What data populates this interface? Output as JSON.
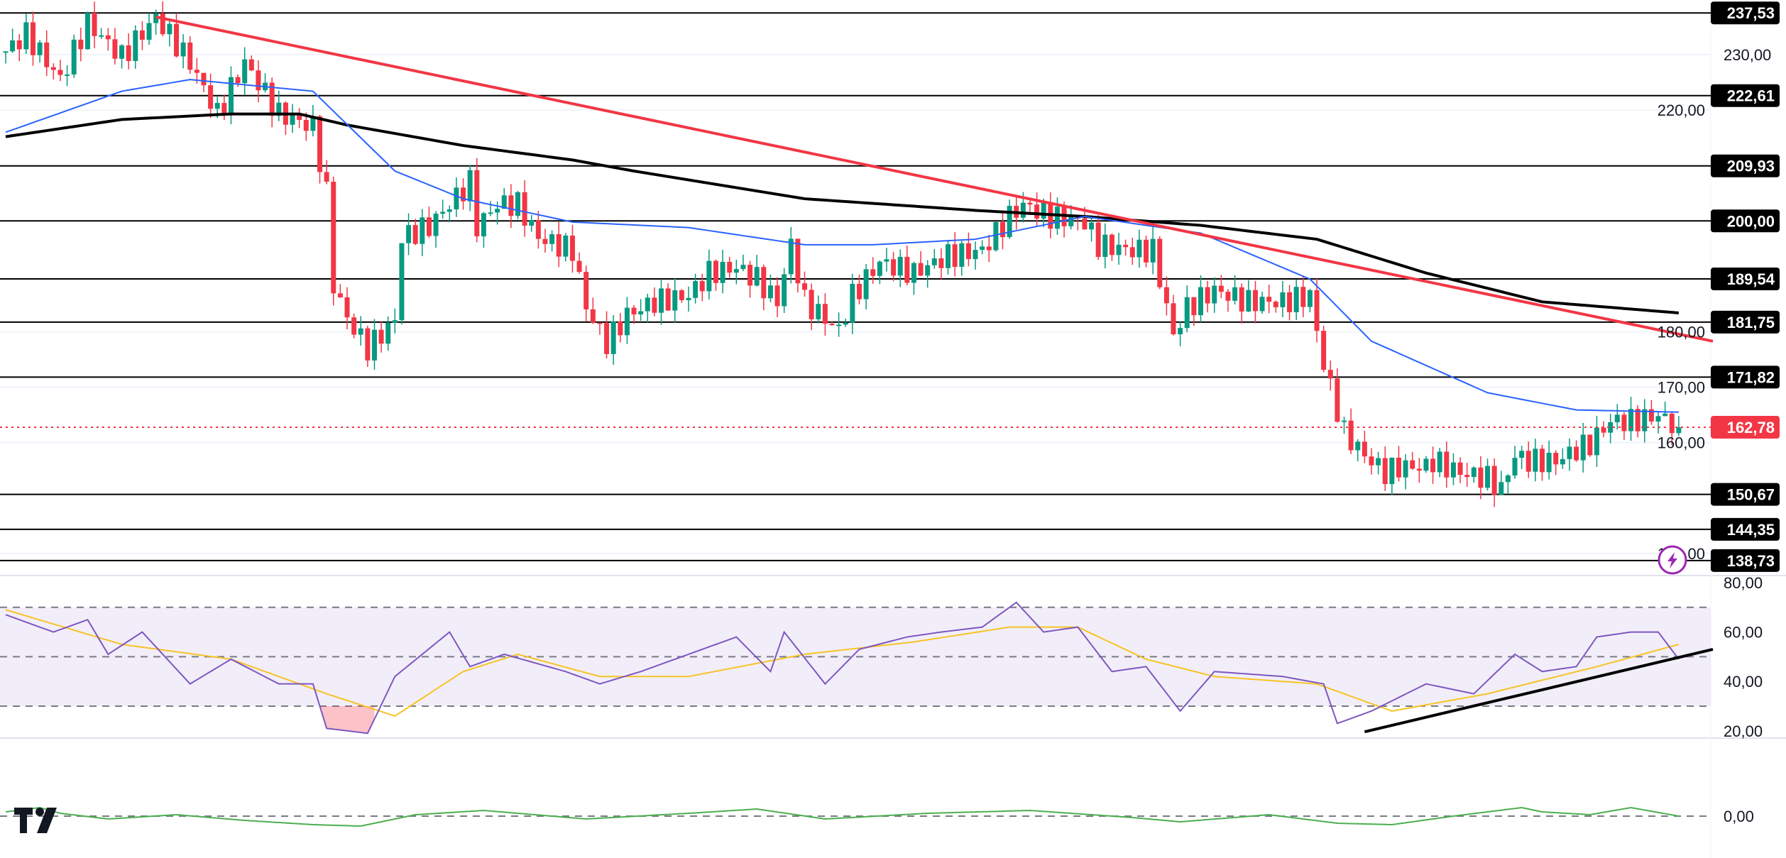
{
  "chart_data": [
    {
      "type": "candlestick",
      "panel": "price",
      "close_waypoints": [
        [
          0,
          230.6
        ],
        [
          3,
          233.7
        ],
        [
          8,
          225.5
        ],
        [
          12,
          235.7
        ],
        [
          17,
          229.6
        ],
        [
          22,
          236.8
        ],
        [
          27,
          228.6
        ],
        [
          31,
          219.3
        ],
        [
          35,
          228.6
        ],
        [
          40,
          219.3
        ],
        [
          45,
          217
        ],
        [
          47,
          205
        ],
        [
          48,
          188.5
        ],
        [
          50,
          182.4
        ],
        [
          53,
          177
        ],
        [
          57,
          182
        ],
        [
          58,
          197
        ],
        [
          62,
          199
        ],
        [
          65,
          203
        ],
        [
          68,
          207
        ],
        [
          69,
          199
        ],
        [
          72,
          203
        ],
        [
          75,
          203
        ],
        [
          78,
          197
        ],
        [
          83,
          194.7
        ],
        [
          85,
          184.4
        ],
        [
          88,
          178
        ],
        [
          91,
          183
        ],
        [
          95,
          185.4
        ],
        [
          100,
          186.5
        ],
        [
          103,
          190.6
        ],
        [
          107,
          191.6
        ],
        [
          110,
          189.5
        ],
        [
          113,
          185.4
        ],
        [
          115,
          195.7
        ],
        [
          117,
          185.4
        ],
        [
          122,
          180.3
        ],
        [
          124,
          186.5
        ],
        [
          128,
          192.6
        ],
        [
          133,
          190.6
        ],
        [
          138,
          193.7
        ],
        [
          143,
          194.7
        ],
        [
          147,
          200.8
        ],
        [
          149,
          202.9
        ],
        [
          153,
          200.8
        ],
        [
          158,
          199.8
        ],
        [
          160,
          195.7
        ],
        [
          165,
          194.7
        ],
        [
          168,
          194.7
        ],
        [
          171,
          179.3
        ],
        [
          173,
          184.4
        ],
        [
          177,
          187.5
        ],
        [
          182,
          185.4
        ],
        [
          187,
          185.4
        ],
        [
          191,
          186.5
        ],
        [
          193,
          174
        ],
        [
          196,
          161.8
        ],
        [
          199,
          157.7
        ],
        [
          202,
          154.6
        ],
        [
          204,
          155.6
        ],
        [
          208,
          155.6
        ],
        [
          209,
          156.7
        ],
        [
          213,
          154.6
        ],
        [
          217,
          153.6
        ],
        [
          219,
          151.5
        ],
        [
          221,
          157.7
        ],
        [
          223,
          156.7
        ],
        [
          227,
          156.7
        ],
        [
          230,
          158.7
        ],
        [
          232,
          159.8
        ],
        [
          235,
          163.9
        ],
        [
          238,
          163.9
        ],
        [
          242,
          164.9
        ],
        [
          245,
          162.78
        ]
      ],
      "ma_blue": [
        [
          0,
          216
        ],
        [
          17,
          223.4
        ],
        [
          27,
          225.5
        ],
        [
          45,
          223.4
        ],
        [
          57,
          209
        ],
        [
          67,
          204
        ],
        [
          83,
          199.8
        ],
        [
          100,
          198.8
        ],
        [
          117,
          195.7
        ],
        [
          127,
          195.7
        ],
        [
          142,
          196.7
        ],
        [
          158,
          200.8
        ],
        [
          175,
          197.8
        ],
        [
          191,
          189.5
        ],
        [
          200,
          178.3
        ],
        [
          217,
          169
        ],
        [
          230,
          165.9
        ],
        [
          245,
          165.5
        ]
      ],
      "ma_black": [
        [
          0,
          215.2
        ],
        [
          17,
          218.3
        ],
        [
          33,
          219.3
        ],
        [
          43,
          219.3
        ],
        [
          50,
          217.3
        ],
        [
          67,
          213.6
        ],
        [
          83,
          211
        ],
        [
          92,
          209
        ],
        [
          117,
          204
        ],
        [
          142,
          201.9
        ],
        [
          158,
          200.8
        ],
        [
          175,
          199.2
        ],
        [
          192,
          196.7
        ],
        [
          208,
          190.6
        ],
        [
          225,
          185.4
        ],
        [
          245,
          183.4
        ]
      ],
      "trendline": [
        [
          22,
          236.8
        ],
        [
          250,
          178.3
        ]
      ],
      "levels": [
        "237,53",
        "222,61",
        "209,93",
        "200,00",
        "189,54",
        "181,75",
        "171,82",
        "150,67",
        "144,35",
        "138,73"
      ],
      "level_values": [
        237.53,
        222.61,
        209.93,
        200.0,
        189.54,
        181.75,
        171.82,
        150.67,
        144.35,
        138.73
      ],
      "last_price": {
        "value": 162.78,
        "label": "162,78"
      },
      "y_ticks": [
        {
          "v": 230,
          "label": "230,00"
        },
        {
          "v": 220,
          "label": "220,00"
        },
        {
          "v": 180,
          "label": "180,00"
        },
        {
          "v": 170,
          "label": "170,00"
        },
        {
          "v": 160,
          "label": "160,00"
        },
        {
          "v": 140,
          "label": "140,00"
        }
      ],
      "ylim": [
        136,
        241
      ]
    },
    {
      "type": "line",
      "panel": "rsi",
      "rsi": [
        [
          0,
          67
        ],
        [
          7,
          60
        ],
        [
          12,
          65
        ],
        [
          15,
          51
        ],
        [
          20,
          60
        ],
        [
          27,
          39
        ],
        [
          33,
          49
        ],
        [
          40,
          39
        ],
        [
          45,
          39
        ],
        [
          47,
          21
        ],
        [
          53,
          19
        ],
        [
          57,
          42
        ],
        [
          65,
          60
        ],
        [
          68,
          46
        ],
        [
          73,
          51
        ],
        [
          82,
          44
        ],
        [
          87,
          39
        ],
        [
          93,
          44
        ],
        [
          100,
          51
        ],
        [
          107,
          58
        ],
        [
          112,
          44
        ],
        [
          114,
          60
        ],
        [
          120,
          39
        ],
        [
          125,
          53
        ],
        [
          132,
          58
        ],
        [
          137,
          60
        ],
        [
          143,
          62
        ],
        [
          148,
          72
        ],
        [
          152,
          60
        ],
        [
          157,
          62
        ],
        [
          162,
          44
        ],
        [
          167,
          46
        ],
        [
          172,
          28
        ],
        [
          177,
          44
        ],
        [
          187,
          42
        ],
        [
          193,
          39
        ],
        [
          195,
          23
        ],
        [
          200,
          28
        ],
        [
          208,
          39
        ],
        [
          215,
          35
        ],
        [
          221,
          51
        ],
        [
          225,
          44
        ],
        [
          230,
          46
        ],
        [
          233,
          58
        ],
        [
          238,
          60
        ],
        [
          242,
          60
        ],
        [
          245,
          49
        ]
      ],
      "rsi_ma": [
        [
          0,
          69
        ],
        [
          17,
          55
        ],
        [
          33,
          49
        ],
        [
          47,
          35
        ],
        [
          57,
          26
        ],
        [
          67,
          44
        ],
        [
          75,
          51
        ],
        [
          87,
          42
        ],
        [
          100,
          42
        ],
        [
          117,
          51
        ],
        [
          133,
          56
        ],
        [
          147,
          62
        ],
        [
          157,
          62
        ],
        [
          167,
          49
        ],
        [
          177,
          42
        ],
        [
          192,
          39
        ],
        [
          203,
          28
        ],
        [
          217,
          35
        ],
        [
          233,
          46
        ],
        [
          245,
          55
        ]
      ],
      "trendline": [
        [
          199,
          19.6
        ],
        [
          250,
          53
        ]
      ],
      "bands": [
        30,
        50,
        70
      ],
      "y_ticks": [
        {
          "v": 80,
          "label": "80,00"
        },
        {
          "v": 60,
          "label": "60,00"
        },
        {
          "v": 40,
          "label": "40,00"
        },
        {
          "v": 20,
          "label": "20,00"
        }
      ],
      "ylim": [
        18,
        83
      ]
    },
    {
      "type": "line",
      "panel": "oscillator",
      "values": [
        [
          0,
          0.3
        ],
        [
          5,
          0.6
        ],
        [
          8,
          0.2
        ],
        [
          15,
          -0.2
        ],
        [
          25,
          0.1
        ],
        [
          35,
          -0.3
        ],
        [
          45,
          -0.6
        ],
        [
          52,
          -0.7
        ],
        [
          60,
          0.1
        ],
        [
          70,
          0.4
        ],
        [
          85,
          -0.2
        ],
        [
          100,
          0.2
        ],
        [
          110,
          0.5
        ],
        [
          120,
          -0.2
        ],
        [
          135,
          0.2
        ],
        [
          150,
          0.4
        ],
        [
          165,
          -0.1
        ],
        [
          172,
          -0.4
        ],
        [
          185,
          0.1
        ],
        [
          195,
          -0.5
        ],
        [
          203,
          -0.6
        ],
        [
          212,
          0.0
        ],
        [
          222,
          0.6
        ],
        [
          225,
          0.3
        ],
        [
          232,
          0.1
        ],
        [
          238,
          0.6
        ],
        [
          245,
          0.0
        ]
      ],
      "y_ticks": [
        {
          "v": 0,
          "label": "0,00"
        }
      ],
      "ylim": [
        -1.2,
        1.2
      ]
    }
  ],
  "colors": {
    "up": "#089981",
    "down": "#f23645",
    "ma_blue": "#2962ff",
    "ma_black": "#000000",
    "trend_red": "#f23645",
    "rsi": "#7e57c2",
    "rsi_ma": "#f7c325",
    "osc": "#4caf50"
  },
  "logo": "TV",
  "icons": {
    "alert": "lightning-icon"
  }
}
